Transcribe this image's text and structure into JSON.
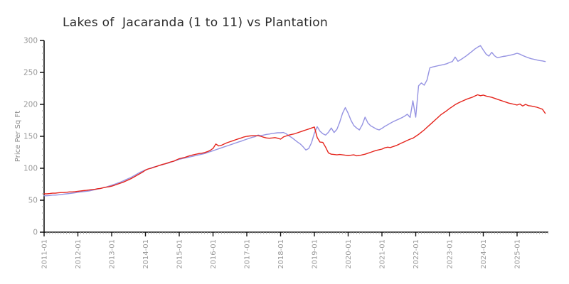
{
  "chart_data": {
    "type": "line",
    "title": "Lakes of  Jacaranda (1 to 11) vs Plantation",
    "xlabel": "",
    "ylabel": "Price Per Sq Ft",
    "grid": false,
    "legend": "none",
    "x_unit": "month",
    "x_start": "2011-01",
    "x_end": "2025-11",
    "x_step_months": 1,
    "x_tick_labels": [
      "2011-01",
      "2012-01",
      "2013-01",
      "2014-01",
      "2015-01",
      "2016-01",
      "2017-01",
      "2018-01",
      "2019-01",
      "2020-01",
      "2021-01",
      "2022-01",
      "2023-01",
      "2024-01",
      "2025-01"
    ],
    "ylim": [
      0,
      300
    ],
    "y_ticks": [
      0,
      50,
      100,
      150,
      200,
      250,
      300
    ],
    "y_minor_step": 10,
    "axis_color": "#111111",
    "tick_label_color": "#999999",
    "series": [
      {
        "name": "Lakes of Jacaranda (1 to 11)",
        "color": "#e5251d",
        "values": [
          60,
          60,
          60.5,
          61,
          61,
          61.5,
          62,
          62,
          62.5,
          63,
          63,
          63.5,
          64,
          64.5,
          65,
          65.5,
          66,
          66.5,
          67,
          68,
          68.5,
          69.5,
          70.5,
          71,
          72,
          73.5,
          75,
          76.5,
          78,
          80,
          82,
          84,
          86.5,
          89,
          91.5,
          94,
          97,
          99,
          100,
          101.5,
          103,
          104.5,
          106,
          107,
          108.5,
          110,
          111,
          113,
          115,
          116,
          117,
          118.5,
          120,
          121,
          122,
          123,
          123.5,
          124.5,
          126,
          128,
          131,
          138,
          135,
          136,
          138,
          140,
          141.5,
          143,
          144.5,
          146,
          147.5,
          149,
          150,
          150.5,
          151,
          151,
          151,
          150,
          148.5,
          147.5,
          147,
          147.5,
          148,
          147,
          145.5,
          149,
          150.5,
          152,
          153,
          154,
          155.5,
          157,
          158.5,
          160,
          161.5,
          163,
          164.5,
          148,
          141,
          140.5,
          133,
          124,
          122,
          121.5,
          121,
          121.5,
          121,
          120.5,
          120,
          120.5,
          121,
          119.5,
          120,
          121,
          122,
          123.5,
          125,
          126.5,
          128,
          129,
          130,
          132,
          133,
          132.5,
          134,
          135.5,
          137.5,
          139.5,
          141.5,
          143.5,
          145.5,
          147,
          150,
          153,
          156.5,
          160,
          164,
          168,
          172,
          176,
          180,
          184,
          187,
          190,
          193.5,
          196.5,
          199.5,
          202,
          204,
          206,
          208,
          209.5,
          211,
          213,
          215,
          213.5,
          214.5,
          213,
          212,
          211,
          209.5,
          208,
          206.5,
          205,
          203.5,
          202,
          201,
          200,
          199,
          200.5,
          197.5,
          200,
          198,
          197.5,
          196.5,
          195.5,
          194,
          192.5,
          186
        ]
      },
      {
        "name": "Plantation",
        "color": "#9593e2",
        "values": [
          57,
          57,
          57.5,
          58,
          58,
          58.5,
          59,
          59.5,
          60,
          60.5,
          61,
          61.5,
          62.5,
          63,
          63.5,
          64,
          64.5,
          65.5,
          66.5,
          67.5,
          68.5,
          69.5,
          70.5,
          72,
          73.5,
          75,
          76.5,
          78,
          80,
          82,
          84,
          86,
          88.5,
          91,
          93.5,
          95.5,
          97.5,
          99,
          100.5,
          102,
          103,
          104.5,
          105.5,
          107,
          108,
          109.5,
          111,
          112.5,
          114,
          115,
          116,
          117,
          118,
          119,
          120,
          121,
          122,
          123,
          124.5,
          126,
          127.5,
          129,
          130.5,
          132,
          133.5,
          135,
          136.5,
          138,
          139.5,
          141,
          142.5,
          144,
          145.5,
          147,
          148.5,
          149.5,
          152,
          151,
          152,
          153,
          153.5,
          154.5,
          155,
          155.5,
          155.5,
          156,
          154,
          150.5,
          148,
          144.5,
          141,
          138,
          133.5,
          128.5,
          131,
          140,
          155,
          165,
          158,
          154,
          152,
          156.5,
          163,
          156,
          161,
          172,
          186,
          195,
          186,
          175,
          167,
          163,
          160,
          168,
          180,
          171,
          166.5,
          164,
          161.5,
          160,
          162.5,
          165.5,
          168,
          170.5,
          173,
          175,
          177,
          179,
          181.5,
          184.5,
          179.5,
          205.5,
          180,
          229,
          233.5,
          230,
          238,
          257,
          258.5,
          259.5,
          260.5,
          261.5,
          262.5,
          263.5,
          265.5,
          267,
          274,
          267.5,
          270,
          273,
          276,
          279.5,
          283,
          286.5,
          289.5,
          292,
          285,
          278.5,
          275.5,
          281.5,
          276,
          273,
          274,
          275,
          275.5,
          276.5,
          277.5,
          278.5,
          280,
          278.5,
          276.5,
          274.5,
          273,
          271.5,
          270.5,
          269.5,
          268.5,
          268,
          267
        ]
      }
    ]
  }
}
